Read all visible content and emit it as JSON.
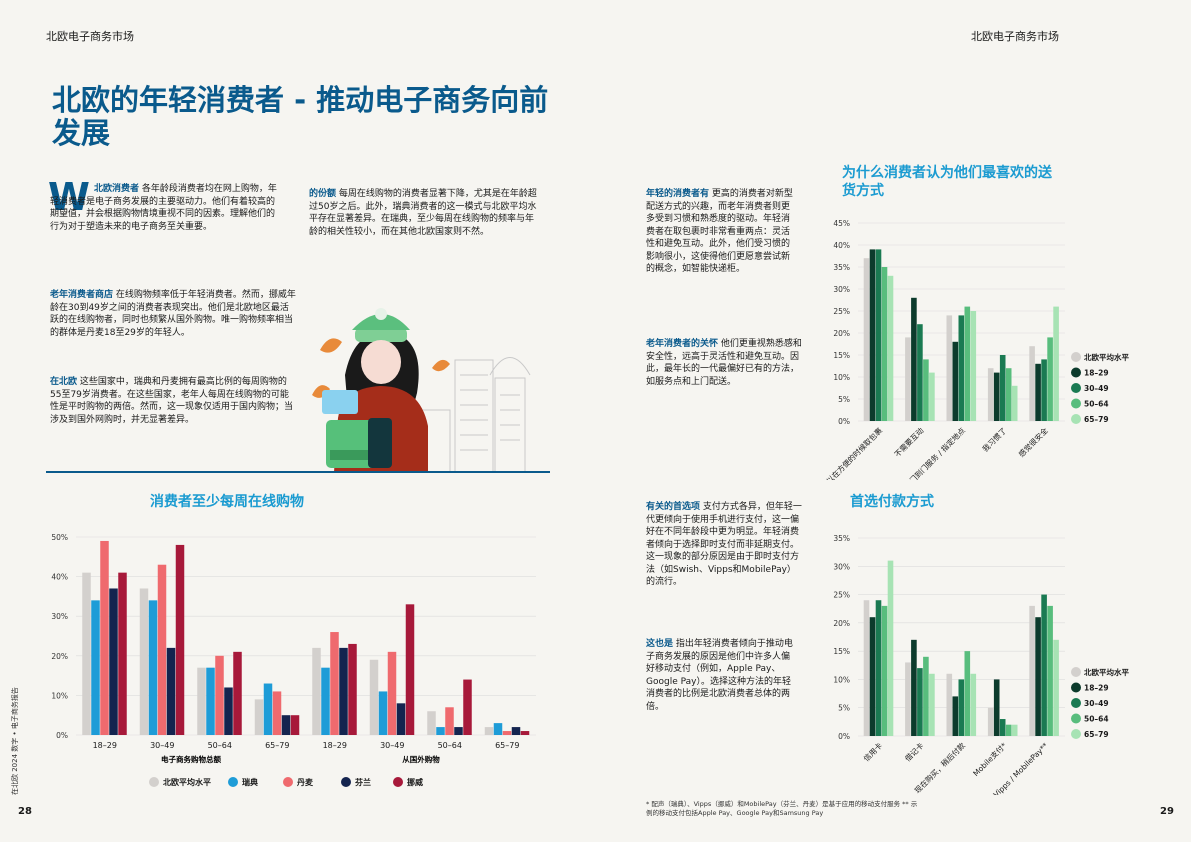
{
  "header": {
    "left": "北欧电子商务市场",
    "right": "北欧电子商务市场"
  },
  "title": "北欧的年轻消费者 - 推动电子商务向前发展",
  "intro": {
    "dropcap": "W",
    "lead": "北欧消费者",
    "text": "各年龄段消费者均在网上购物，年轻消费者是电子商务发展的主要驱动力。他们有着较高的期望值，并会根据购物情境重视不同的因素。理解他们的行为对于塑造未来的电子商务至关重要。"
  },
  "p_older": {
    "lead": "老年消费者商店",
    "text": "在线购物频率低于年轻消费者。然而，挪威年龄在30到49岁之间的消费者表现突出。他们是北欧地区最活跃的在线购物者，同时也频繁从国外购物。唯一购物频率相当的群体是丹麦18至29岁的年轻人。"
  },
  "p_north": {
    "lead": "在北欧",
    "text": "这些国家中，瑞典和丹麦拥有最高比例的每周购物的55至79岁消费者。在这些国家，老年人每周在线购物的可能性是平时购物的两倍。然而，这一现象仅适用于国内购物；当涉及到国外网购时，并无显著差异。"
  },
  "p_share": {
    "lead": "的份额",
    "text": "每周在线购物的消费者显著下降，尤其是在年龄超过50岁之后。此外，瑞典消费者的这一模式与北欧平均水平存在显著差异。在瑞典，至少每周在线购物的频率与年龄的相关性较小，而在其他北欧国家则不然。"
  },
  "p_young": {
    "lead": "年轻的消费者有",
    "text": "更高的消费者对新型配送方式的兴趣，而老年消费者则更多受到习惯和熟悉度的驱动。年轻消费者在取包裹时非常看重两点：灵活性和避免互动。此外，他们受习惯的影响很小，这使得他们更愿意尝试新的概念，如智能快递柜。"
  },
  "p_old_care": {
    "lead": "老年消费者的关怀",
    "text": "他们更重视熟悉感和安全性，远高于灵活性和避免互动。因此，最年长的一代最偏好已有的方法，如服务点和上门配送。"
  },
  "p_pref": {
    "lead": "有关的首选项",
    "text": "支付方式各异，但年轻一代更倾向于使用手机进行支付，这一偏好在不同年龄段中更为明显。年轻消费者倾向于选择即时支付而非延期支付。这一现象的部分原因是由于即时支付方法（如Swish、Vipps和MobilePay）的流行。"
  },
  "p_also": {
    "lead": "这也是",
    "text": "指出年轻消费者倾向于推动电子商务发展的原因是他们中许多人偏好移动支付（例如，Apple Pay、Google Pay）。选择这种方法的年轻消费者的比例是北欧消费者总体的两倍。"
  },
  "footnote": "* 配声（瑞典）、Vipps（挪威）和MobilePay（芬兰、丹麦）是基于应用的移动支付服务 ** 示例的移动支付包括Apple Pay、Google Pay和Samsung Pay",
  "page_left": "28",
  "page_right": "29",
  "side_text": "在北欧 2024 数字 • 电子商务报告",
  "colors": {
    "avg": "#d3d0cd",
    "se": "#1e9cd7",
    "dk": "#ef6a6e",
    "fi": "#14244f",
    "no": "#a7193a",
    "a1829": "#0c3b2c",
    "a3049": "#1a7a52",
    "a5064": "#58bd7d",
    "a6579": "#a7e3b4"
  },
  "chart_data": [
    {
      "type": "bar",
      "title": "消费者至少每周在线购物",
      "ylim": [
        0,
        50
      ],
      "yticks": [
        "0%",
        "10%",
        "20%",
        "30%",
        "40%",
        "50%"
      ],
      "categories": [
        "18–29",
        "30–49",
        "50–64",
        "65–79",
        "18–29",
        "30–49",
        "50–64",
        "65–79"
      ],
      "groups": [
        "电子商务购物总额",
        "从国外购物"
      ],
      "legend": [
        "北欧平均水平",
        "瑞典",
        "丹麦",
        "芬兰",
        "挪威"
      ],
      "series": [
        {
          "name": "北欧平均水平",
          "values": [
            41,
            37,
            17,
            9,
            22,
            19,
            6,
            2
          ]
        },
        {
          "name": "瑞典",
          "values": [
            34,
            34,
            17,
            13,
            17,
            11,
            2,
            3
          ]
        },
        {
          "name": "丹麦",
          "values": [
            49,
            43,
            20,
            11,
            26,
            21,
            7,
            1
          ]
        },
        {
          "name": "芬兰",
          "values": [
            37,
            22,
            12,
            5,
            22,
            8,
            2,
            2
          ]
        },
        {
          "name": "挪威",
          "values": [
            41,
            48,
            21,
            5,
            23,
            33,
            14,
            1
          ]
        }
      ]
    },
    {
      "type": "bar",
      "title": "为什么消费者认为他们最喜欢的送货方式",
      "ylim": [
        0,
        45
      ],
      "yticks": [
        "0%",
        "5%",
        "10%",
        "15%",
        "20%",
        "25%",
        "30%",
        "35%",
        "40%",
        "45%"
      ],
      "categories": [
        "我可以在方便的时候取包裹",
        "不需要互动",
        "门到门服务 / 指定地点",
        "我习惯了",
        "感觉很安全"
      ],
      "legend": [
        "北欧平均水平",
        "18–29",
        "30–49",
        "50–64",
        "65–79"
      ],
      "series": [
        {
          "name": "北欧平均水平",
          "values": [
            37,
            19,
            24,
            12,
            17
          ]
        },
        {
          "name": "18–29",
          "values": [
            39,
            28,
            18,
            11,
            13
          ]
        },
        {
          "name": "30–49",
          "values": [
            39,
            22,
            24,
            15,
            14
          ]
        },
        {
          "name": "50–64",
          "values": [
            35,
            14,
            26,
            12,
            19
          ]
        },
        {
          "name": "65–79",
          "values": [
            33,
            11,
            25,
            8,
            26
          ]
        }
      ],
      "extra_series_note": ""
    },
    {
      "type": "bar",
      "title": "首选付款方式",
      "ylim": [
        0,
        35
      ],
      "yticks": [
        "0%",
        "5%",
        "10%",
        "15%",
        "20%",
        "25%",
        "30%",
        "35%"
      ],
      "categories": [
        "信用卡",
        "借记卡",
        "现在购买，稍后付款",
        "Mobile支付*",
        "Swish / Vipps / MobilePay**"
      ],
      "legend": [
        "北欧平均水平",
        "18–29",
        "30–49",
        "50–64",
        "65–79"
      ],
      "series": [
        {
          "name": "北欧平均水平",
          "values": [
            24,
            13,
            11,
            5,
            23
          ]
        },
        {
          "name": "18–29",
          "values": [
            21,
            17,
            7,
            10,
            21
          ]
        },
        {
          "name": "30–49",
          "values": [
            24,
            12,
            10,
            3,
            25
          ]
        },
        {
          "name": "50–64",
          "values": [
            23,
            14,
            15,
            2,
            23
          ]
        },
        {
          "name": "65–79",
          "values": [
            31,
            11,
            11,
            2,
            17
          ]
        }
      ]
    }
  ]
}
